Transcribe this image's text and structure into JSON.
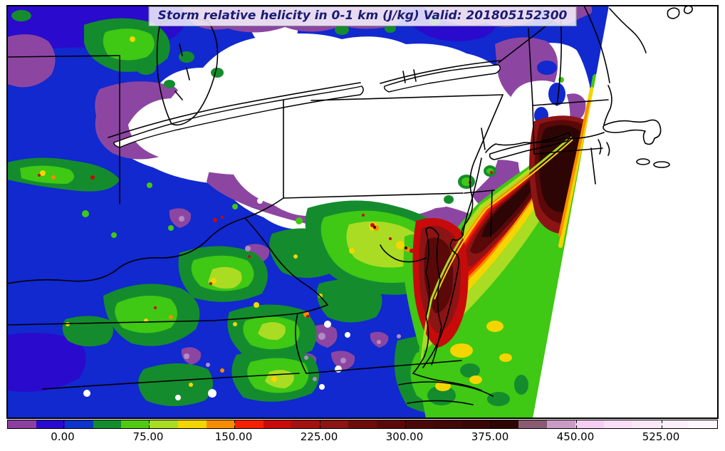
{
  "title_bar": {
    "text": "Storm relative helicity in 0-1 km (J/kg) Valid: 201805152300"
  },
  "chart_data": {
    "type": "heatmap",
    "title": "Storm relative helicity in 0-1 km (J/kg) Valid: 201805152300",
    "variable": "Storm relative helicity in 0-1 km",
    "units": "J/kg",
    "valid_timestamp": "201805152300",
    "legend_position": "bottom",
    "grid": false,
    "colorbar": {
      "orientation": "horizontal",
      "tick_labels": [
        "0.00",
        "75.00",
        "150.00",
        "225.00",
        "300.00",
        "375.00",
        "450.00",
        "525.00"
      ],
      "tick_values": [
        0,
        75,
        150,
        225,
        300,
        375,
        450,
        525
      ],
      "value_range": [
        -50,
        575
      ],
      "bin_size": 25,
      "colors": [
        "#8C3FA0",
        "#2A0ACD",
        "#0D35C9",
        "#148C2D",
        "#50C814",
        "#AADC23",
        "#F5D500",
        "#F88C00",
        "#F52000",
        "#C80A0A",
        "#A31010",
        "#8C1414",
        "#6E0C0C",
        "#5A0808",
        "#4A0707",
        "#420707",
        "#3A0606",
        "#2E0505",
        "#8A5A72",
        "#C99CC6",
        "#F7CDF5",
        "#FADEF8",
        "#FAE8F8",
        "#FBEFFA",
        "#FDF7FD"
      ]
    },
    "map_speckles": [
      [
        "yellow",
        186,
        55,
        4
      ],
      [
        "yellow",
        60,
        243,
        4
      ],
      [
        "yellow",
        300,
        394,
        4
      ],
      [
        "yellow",
        360,
        428,
        4
      ],
      [
        "yellow",
        330,
        455,
        3
      ],
      [
        "yellow",
        205,
        450,
        3
      ],
      [
        "yellow",
        415,
        360,
        3
      ],
      [
        "yellow",
        95,
        455,
        3
      ],
      [
        "yellow",
        268,
        540,
        3
      ],
      [
        "yellow",
        385,
        532,
        4
      ],
      [
        "yellow",
        450,
        415,
        3
      ],
      [
        "yellow",
        524,
        318,
        6
      ],
      [
        "yellow",
        562,
        344,
        6
      ],
      [
        "yellow",
        494,
        352,
        4
      ],
      [
        "orange",
        75,
        249,
        3
      ],
      [
        "orange",
        430,
        441,
        4
      ],
      [
        "orange",
        240,
        445,
        3
      ],
      [
        "orange",
        312,
        520,
        3
      ],
      [
        "orange",
        528,
        320,
        4
      ],
      [
        "orange",
        572,
        350,
        4
      ],
      [
        "orange",
        700,
        470,
        4
      ],
      [
        "red",
        130,
        249,
        3
      ],
      [
        "red",
        302,
        309,
        3
      ],
      [
        "red",
        312,
        305,
        2
      ],
      [
        "red",
        432,
        444,
        2
      ],
      [
        "red",
        660,
        256,
        2
      ],
      [
        "red",
        690,
        242,
        2
      ],
      [
        "red",
        296,
        398,
        2
      ],
      [
        "red",
        55,
        246,
        2
      ],
      [
        "red",
        350,
        360,
        2
      ],
      [
        "red",
        218,
        432,
        2
      ],
      [
        "red",
        523,
        316,
        3
      ],
      [
        "red",
        578,
        352,
        3
      ],
      [
        "red",
        548,
        335,
        2
      ],
      [
        "red",
        510,
        302,
        2
      ],
      [
        "black_red",
        526,
        319,
        2
      ],
      [
        "black_red",
        570,
        348,
        2
      ],
      [
        "green",
        120,
        300,
        5
      ],
      [
        "green",
        160,
        330,
        4
      ],
      [
        "green",
        240,
        320,
        4
      ],
      [
        "green",
        420,
        310,
        5
      ],
      [
        "green",
        210,
        260,
        4
      ],
      [
        "green",
        330,
        290,
        4
      ],
      [
        "green",
        806,
        238,
        4
      ],
      [
        "green",
        796,
        252,
        3
      ],
      [
        "green",
        788,
        112,
        4
      ],
      [
        "white",
        460,
        455,
        5
      ],
      [
        "white",
        488,
        470,
        4
      ],
      [
        "white",
        475,
        518,
        5
      ],
      [
        "white",
        298,
        552,
        6
      ],
      [
        "white",
        250,
        558,
        4
      ],
      [
        "white",
        122,
        552,
        5
      ],
      [
        "white",
        452,
        543,
        4
      ],
      [
        "white",
        398,
        290,
        5
      ],
      [
        "white",
        365,
        282,
        4
      ],
      [
        "purple_pale",
        452,
        472,
        5
      ],
      [
        "purple_pale",
        482,
        506,
        4
      ],
      [
        "purple_pale",
        430,
        502,
        3
      ],
      [
        "purple_pale",
        262,
        500,
        4
      ],
      [
        "purple_pale",
        292,
        512,
        3
      ],
      [
        "purple_pale",
        442,
        532,
        3
      ],
      [
        "purple_pale",
        532,
        480,
        3
      ],
      [
        "purple_pale",
        255,
        307,
        4
      ],
      [
        "purple_pale",
        348,
        349,
        4
      ],
      [
        "purple_pale",
        560,
        472,
        3
      ]
    ]
  },
  "palette": {
    "map_blue": "#1129CE",
    "map_blue_dark": "#2A0ACD",
    "purple": "#8C46A2",
    "purple_pale": "#B08CC4",
    "green_dark": "#148C2D",
    "green": "#3FC814",
    "yellow_green": "#AADC23",
    "yellow": "#F5D500",
    "orange": "#F88C00",
    "red_orange": "#F52000",
    "red": "#C80A0A",
    "red_dark": "#8C1414",
    "maroon": "#5A0808",
    "black_red": "#2E0505",
    "white": "#FFFFFF",
    "outline": "#000000"
  }
}
